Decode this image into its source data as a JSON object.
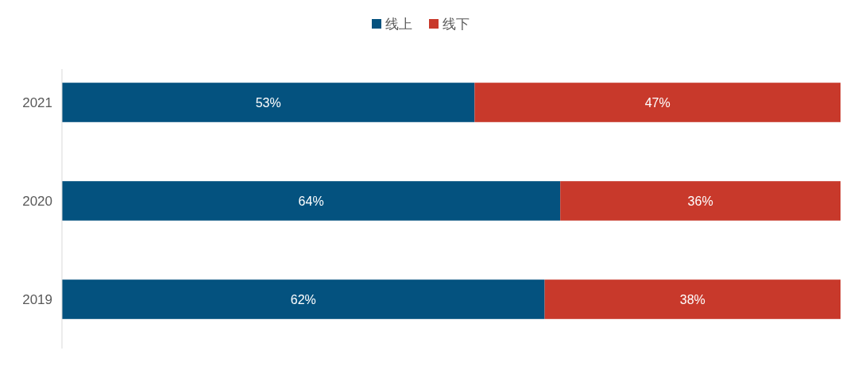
{
  "chart_data": {
    "type": "bar",
    "orientation": "horizontal",
    "stacked": true,
    "categories": [
      "2021",
      "2020",
      "2019"
    ],
    "xlim": [
      0,
      100
    ],
    "tick_labels": "y",
    "legend": "top",
    "series": [
      {
        "name": "线上",
        "color": "#04527f",
        "values": [
          53,
          64,
          62
        ],
        "value_labels": [
          "53%",
          "64%",
          "62%"
        ]
      },
      {
        "name": "线下",
        "color": "#c8392b",
        "values": [
          47,
          36,
          38
        ],
        "value_labels": [
          "47%",
          "36%",
          "38%"
        ]
      }
    ]
  }
}
